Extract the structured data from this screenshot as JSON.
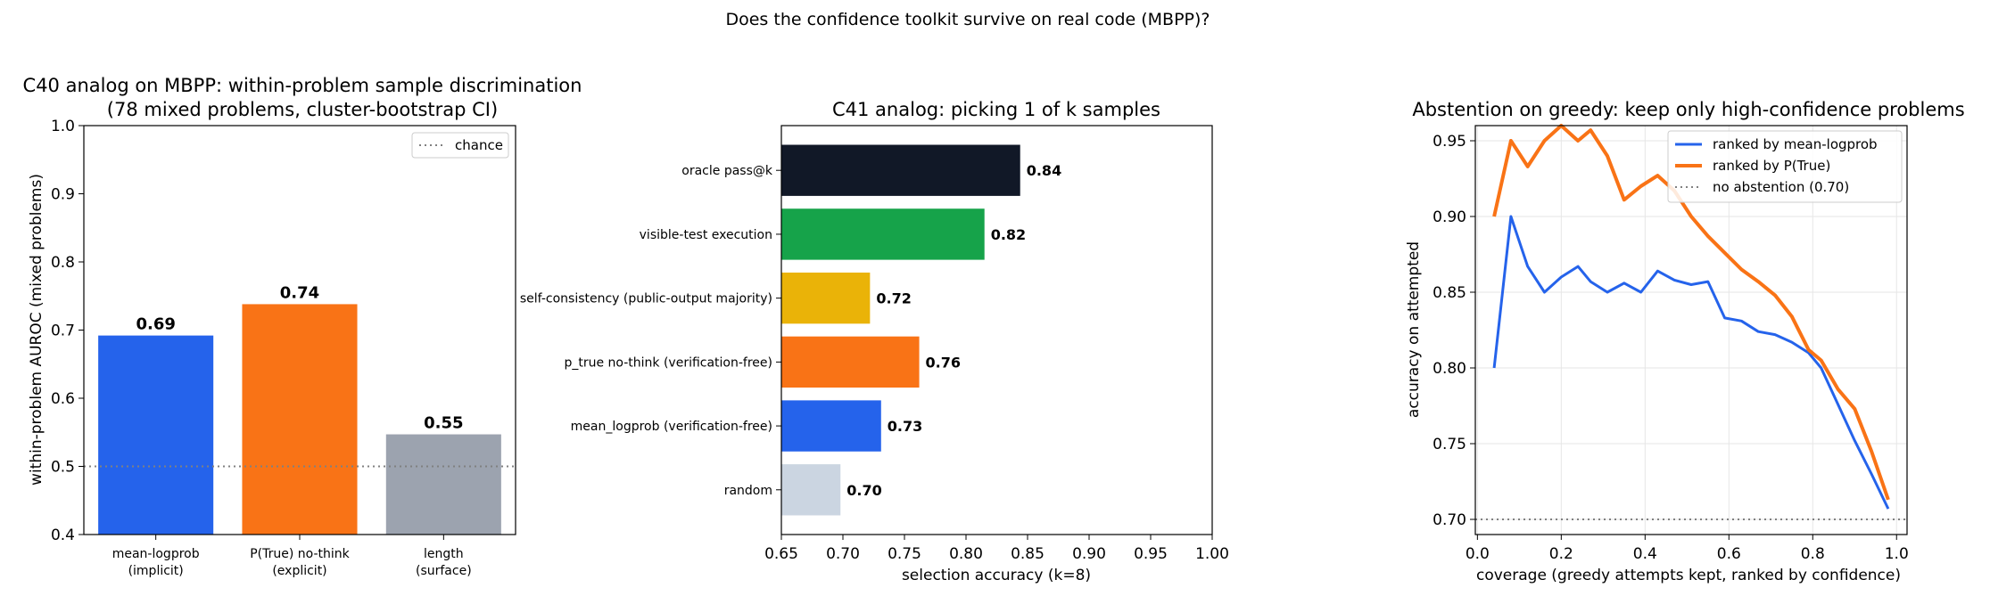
{
  "suptitle": "Does the confidence toolkit survive on real code (MBPP)?",
  "chart_data": [
    {
      "type": "bar",
      "title_line1": "C40 analog on MBPP: within-problem sample discrimination",
      "title_line2": "(78 mixed problems, cluster-bootstrap CI)",
      "ylabel": "within-problem AUROC (mixed problems)",
      "xlabel": "",
      "ylim": [
        0.4,
        1.0
      ],
      "yticks": [
        "0.4",
        "0.5",
        "0.6",
        "0.7",
        "0.8",
        "0.9",
        "1.0"
      ],
      "categories": [
        {
          "line1": "mean-logprob",
          "line2": "(implicit)"
        },
        {
          "line1": "P(True) no-think",
          "line2": "(explicit)"
        },
        {
          "line1": "length",
          "line2": "(surface)"
        }
      ],
      "values": [
        0.692,
        0.738,
        0.547
      ],
      "value_labels": [
        "0.69",
        "0.74",
        "0.55"
      ],
      "colors": [
        "#2563eb",
        "#f97316",
        "#9ca3af"
      ],
      "reference_line": {
        "value": 0.5,
        "label": "chance"
      },
      "legend_position": "upper right"
    },
    {
      "type": "bar",
      "orientation": "horizontal",
      "title": "C41 analog: picking 1 of k samples",
      "xlabel": "selection accuracy (k=8)",
      "xlim": [
        0.65,
        1.0
      ],
      "xticks": [
        "0.65",
        "0.70",
        "0.75",
        "0.80",
        "0.85",
        "0.90",
        "0.95",
        "1.00"
      ],
      "categories": [
        "oracle pass@k",
        "visible-test execution",
        "self-consistency (public-output majority)",
        "p_true no-think (verification-free)",
        "mean_logprob (verification-free)",
        "random"
      ],
      "values": [
        0.844,
        0.815,
        0.722,
        0.762,
        0.731,
        0.698
      ],
      "value_labels": [
        "0.84",
        "0.82",
        "0.72",
        "0.76",
        "0.73",
        "0.70"
      ],
      "colors": [
        "#111827",
        "#16a34a",
        "#eab308",
        "#f97316",
        "#2563eb",
        "#cbd5e1"
      ]
    },
    {
      "type": "line",
      "title": "Abstention on greedy: keep only high-confidence problems",
      "xlabel": "coverage (greedy attempts kept, ranked by confidence)",
      "ylabel": "accuracy on attempted",
      "xlim": [
        0.0,
        1.0
      ],
      "ylim": [
        0.69,
        0.96
      ],
      "xticks": [
        "0.0",
        "0.2",
        "0.4",
        "0.6",
        "0.8",
        "1.0"
      ],
      "yticks": [
        "0.70",
        "0.75",
        "0.80",
        "0.85",
        "0.90",
        "0.95"
      ],
      "grid": true,
      "legend_position": "upper right",
      "series": [
        {
          "name": "ranked by mean-logprob",
          "color": "#2563eb",
          "x": [
            0.04,
            0.08,
            0.12,
            0.16,
            0.2,
            0.24,
            0.27,
            0.31,
            0.35,
            0.39,
            0.43,
            0.47,
            0.51,
            0.55,
            0.59,
            0.63,
            0.67,
            0.71,
            0.75,
            0.79,
            0.82,
            0.86,
            0.9,
            0.94,
            0.98
          ],
          "y": [
            0.8,
            0.9,
            0.867,
            0.85,
            0.86,
            0.867,
            0.857,
            0.85,
            0.856,
            0.85,
            0.864,
            0.858,
            0.855,
            0.857,
            0.833,
            0.831,
            0.824,
            0.822,
            0.817,
            0.81,
            0.8,
            0.776,
            0.752,
            0.73,
            0.707
          ]
        },
        {
          "name": "ranked by P(True)",
          "color": "#f97316",
          "x": [
            0.04,
            0.08,
            0.12,
            0.16,
            0.2,
            0.24,
            0.27,
            0.31,
            0.35,
            0.39,
            0.43,
            0.47,
            0.51,
            0.55,
            0.59,
            0.63,
            0.67,
            0.71,
            0.75,
            0.79,
            0.82,
            0.86,
            0.9,
            0.94,
            0.98
          ],
          "y": [
            0.9,
            0.95,
            0.933,
            0.95,
            0.96,
            0.95,
            0.957,
            0.94,
            0.911,
            0.92,
            0.927,
            0.917,
            0.9,
            0.887,
            0.876,
            0.865,
            0.857,
            0.848,
            0.834,
            0.812,
            0.805,
            0.786,
            0.773,
            0.745,
            0.713
          ]
        }
      ],
      "reference_line": {
        "value": 0.7,
        "label": "no abstention (0.70)"
      }
    }
  ]
}
